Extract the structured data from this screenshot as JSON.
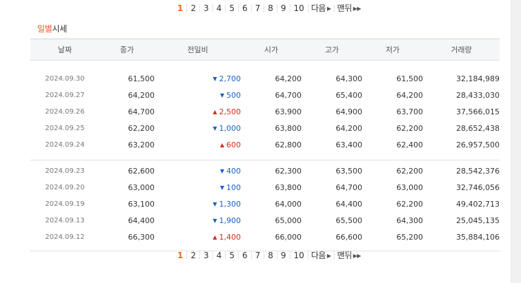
{
  "pagination": {
    "pages": [
      "1",
      "2",
      "3",
      "4",
      "5",
      "6",
      "7",
      "8",
      "9",
      "10"
    ],
    "current": "1",
    "next_label": "다음",
    "last_label": "맨뒤"
  },
  "section": {
    "title_part1": "일별",
    "title_part2": "시세"
  },
  "table": {
    "headers": [
      "날짜",
      "종가",
      "전일비",
      "시가",
      "고가",
      "저가",
      "거래량"
    ],
    "group1": [
      {
        "date": "2024.09.30",
        "close": "61,500",
        "dir": "down",
        "change": "2,700",
        "open": "64,200",
        "high": "64,300",
        "low": "61,500",
        "volume": "32,184,989"
      },
      {
        "date": "2024.09.27",
        "close": "64,200",
        "dir": "down",
        "change": "500",
        "open": "64,700",
        "high": "65,400",
        "low": "64,200",
        "volume": "28,433,030"
      },
      {
        "date": "2024.09.26",
        "close": "64,700",
        "dir": "up",
        "change": "2,500",
        "open": "63,900",
        "high": "64,900",
        "low": "63,700",
        "volume": "37,566,015"
      },
      {
        "date": "2024.09.25",
        "close": "62,200",
        "dir": "down",
        "change": "1,000",
        "open": "63,800",
        "high": "64,200",
        "low": "62,200",
        "volume": "28,652,438"
      },
      {
        "date": "2024.09.24",
        "close": "63,200",
        "dir": "up",
        "change": "600",
        "open": "62,800",
        "high": "63,400",
        "low": "62,400",
        "volume": "26,957,500"
      }
    ],
    "group2": [
      {
        "date": "2024.09.23",
        "close": "62,600",
        "dir": "down",
        "change": "400",
        "open": "62,300",
        "high": "63,500",
        "low": "62,200",
        "volume": "28,542,376"
      },
      {
        "date": "2024.09.20",
        "close": "63,000",
        "dir": "down",
        "change": "100",
        "open": "63,800",
        "high": "64,700",
        "low": "63,000",
        "volume": "32,746,056"
      },
      {
        "date": "2024.09.19",
        "close": "63,100",
        "dir": "down",
        "change": "1,300",
        "open": "64,000",
        "high": "64,400",
        "low": "62,200",
        "volume": "49,402,713"
      },
      {
        "date": "2024.09.13",
        "close": "64,400",
        "dir": "down",
        "change": "1,900",
        "open": "65,000",
        "high": "65,500",
        "low": "64,300",
        "volume": "25,045,135"
      },
      {
        "date": "2024.09.12",
        "close": "66,300",
        "dir": "up",
        "change": "1,400",
        "open": "66,000",
        "high": "66,600",
        "low": "65,200",
        "volume": "35,884,106"
      }
    ]
  },
  "icons": {
    "down": "triangle-down-icon",
    "up": "triangle-up-icon",
    "next": "triangle-right-icon",
    "last": "double-triangle-right-icon"
  },
  "colors": {
    "accent": "#ee6a0e",
    "up": "#d62a1a",
    "down": "#1a5fc4"
  }
}
